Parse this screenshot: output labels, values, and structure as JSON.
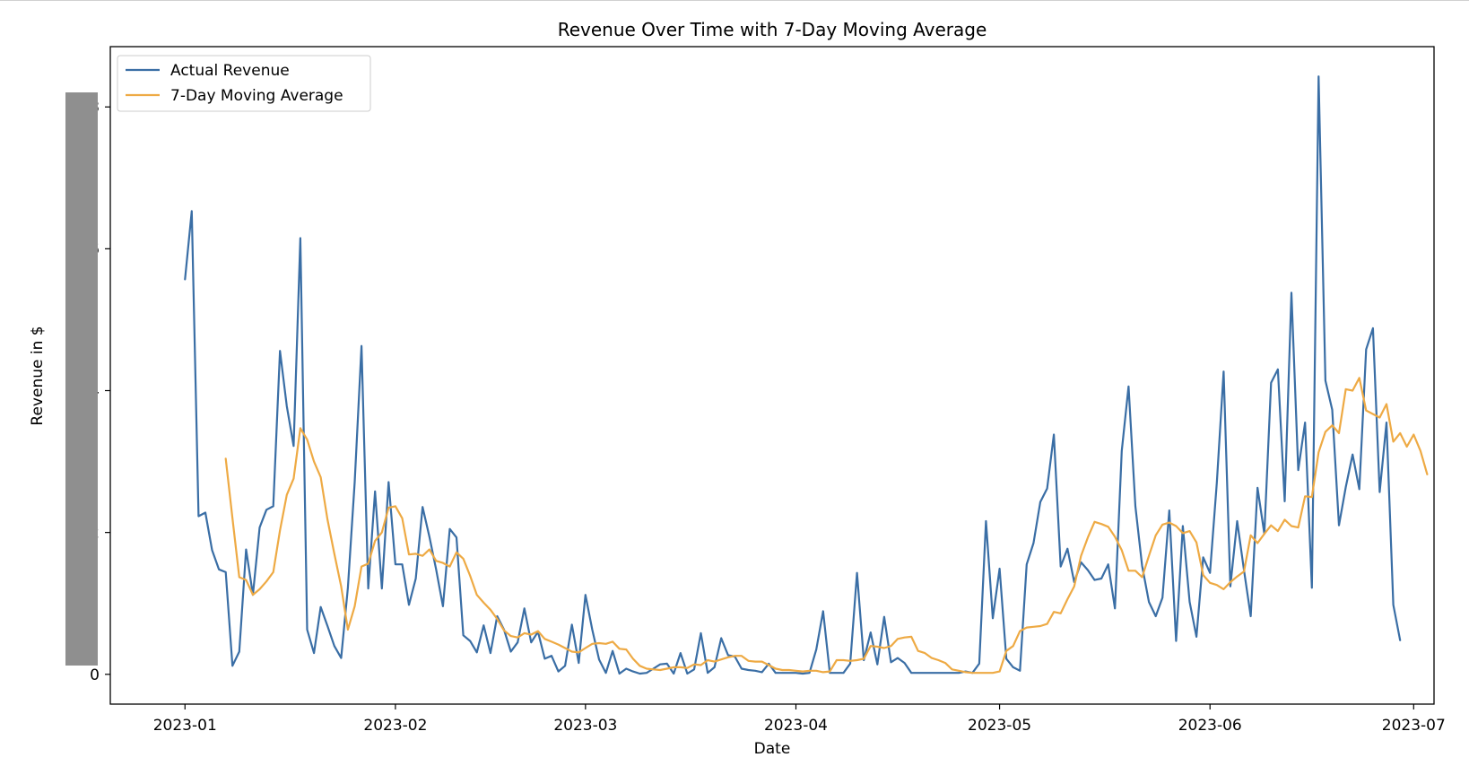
{
  "chart_data": {
    "type": "line",
    "title": "Revenue Over Time with 7-Day Moving Average",
    "xlabel": "Date",
    "ylabel": "Revenue in $",
    "xlim": [
      "2022-12-21",
      "2023-07-04"
    ],
    "ylim": [
      -0.42,
      8.85
    ],
    "x_ticks": [
      "2023-01-01",
      "2023-02-01",
      "2023-03-01",
      "2023-04-01",
      "2023-05-01",
      "2023-06-01",
      "2023-07-01"
    ],
    "x_tick_labels": [
      "2023-01",
      "2023-02",
      "2023-03",
      "2023-04",
      "2023-05",
      "2023-06",
      "2023-07"
    ],
    "y_ticks": [
      0,
      2,
      4,
      6,
      8
    ],
    "y_tick_labels": [
      "0",
      "2",
      "4",
      "6",
      "8"
    ],
    "legend_placement": "top-left",
    "grid": false,
    "start_date": "2023-01-01",
    "series": [
      {
        "name": "Actual Revenue",
        "color": "#3a6ea5",
        "values": [
          5.57,
          6.53,
          2.23,
          2.28,
          1.75,
          1.48,
          1.44,
          0.12,
          0.32,
          1.76,
          1.12,
          2.07,
          2.32,
          2.37,
          4.56,
          3.78,
          3.22,
          6.15,
          0.63,
          0.3,
          0.95,
          0.68,
          0.4,
          0.23,
          1.22,
          2.71,
          4.63,
          1.21,
          2.58,
          1.21,
          2.71,
          1.55,
          1.55,
          0.98,
          1.35,
          2.36,
          1.94,
          1.48,
          0.96,
          2.05,
          1.93,
          0.55,
          0.47,
          0.31,
          0.69,
          0.3,
          0.82,
          0.63,
          0.32,
          0.45,
          0.93,
          0.45,
          0.6,
          0.22,
          0.26,
          0.04,
          0.12,
          0.7,
          0.16,
          1.12,
          0.63,
          0.21,
          0.02,
          0.33,
          0.01,
          0.08,
          0.04,
          0.01,
          0.02,
          0.08,
          0.14,
          0.15,
          0.01,
          0.3,
          0.01,
          0.07,
          0.58,
          0.02,
          0.1,
          0.51,
          0.27,
          0.25,
          0.08,
          0.06,
          0.05,
          0.03,
          0.15,
          0.02,
          0.02,
          0.02,
          0.02,
          0.01,
          0.02,
          0.35,
          0.89,
          0.02,
          0.02,
          0.02,
          0.15,
          1.43,
          0.2,
          0.59,
          0.14,
          0.81,
          0.17,
          0.23,
          0.16,
          0.02,
          0.02,
          0.02,
          0.02,
          0.02,
          0.02,
          0.02,
          0.02,
          0.04,
          0.02,
          0.15,
          2.16,
          0.79,
          1.49,
          0.22,
          0.1,
          0.05,
          1.55,
          1.85,
          2.43,
          2.62,
          3.38,
          1.52,
          1.77,
          1.3,
          1.58,
          1.47,
          1.33,
          1.35,
          1.55,
          0.93,
          3.15,
          4.06,
          2.37,
          1.53,
          1.02,
          0.82,
          1.08,
          2.31,
          0.47,
          2.09,
          1.02,
          0.53,
          1.65,
          1.43,
          2.7,
          4.27,
          1.24,
          2.16,
          1.47,
          0.82,
          2.63,
          1.98,
          4.11,
          4.3,
          2.44,
          5.38,
          2.88,
          3.55,
          1.22,
          8.43,
          4.14,
          3.73,
          2.1,
          2.64,
          3.1,
          2.61,
          4.58,
          4.88,
          2.57,
          3.55,
          0.98,
          0.48
        ]
      },
      {
        "name": "7-Day Moving Average",
        "color": "#eeaa44",
        "offset": 6,
        "values": [
          3.04,
          2.2,
          1.37,
          1.33,
          1.12,
          1.2,
          1.31,
          1.44,
          2.03,
          2.53,
          2.76,
          3.47,
          3.31,
          3.0,
          2.78,
          2.18,
          1.7,
          1.24,
          0.63,
          0.96,
          1.52,
          1.56,
          1.88,
          2.0,
          2.35,
          2.37,
          2.2,
          1.69,
          1.7,
          1.67,
          1.76,
          1.6,
          1.57,
          1.52,
          1.72,
          1.63,
          1.39,
          1.12,
          1.01,
          0.91,
          0.78,
          0.62,
          0.54,
          0.52,
          0.58,
          0.56,
          0.61,
          0.5,
          0.46,
          0.42,
          0.37,
          0.32,
          0.31,
          0.37,
          0.43,
          0.44,
          0.43,
          0.46,
          0.36,
          0.35,
          0.22,
          0.12,
          0.08,
          0.07,
          0.06,
          0.08,
          0.1,
          0.1,
          0.09,
          0.14,
          0.13,
          0.2,
          0.18,
          0.21,
          0.24,
          0.26,
          0.26,
          0.19,
          0.18,
          0.18,
          0.13,
          0.08,
          0.06,
          0.06,
          0.05,
          0.04,
          0.05,
          0.05,
          0.03,
          0.04,
          0.2,
          0.2,
          0.19,
          0.2,
          0.22,
          0.4,
          0.39,
          0.37,
          0.4,
          0.5,
          0.52,
          0.53,
          0.33,
          0.3,
          0.23,
          0.2,
          0.16,
          0.07,
          0.05,
          0.03,
          0.02,
          0.02,
          0.02,
          0.02,
          0.04,
          0.33,
          0.4,
          0.61,
          0.66,
          0.67,
          0.68,
          0.71,
          0.88,
          0.86,
          1.06,
          1.24,
          1.67,
          1.93,
          2.15,
          2.12,
          2.08,
          1.94,
          1.75,
          1.46,
          1.46,
          1.37,
          1.67,
          1.96,
          2.11,
          2.14,
          2.09,
          1.99,
          2.02,
          1.86,
          1.4,
          1.29,
          1.26,
          1.2,
          1.3,
          1.38,
          1.45,
          1.96,
          1.85,
          1.98,
          2.1,
          2.02,
          2.18,
          2.09,
          2.07,
          2.51,
          2.5,
          3.13,
          3.42,
          3.51,
          3.4,
          4.02,
          4.0,
          4.18,
          3.72,
          3.67,
          3.62,
          3.81,
          3.28,
          3.4,
          3.21,
          3.38,
          3.15,
          2.82
        ]
      }
    ]
  }
}
